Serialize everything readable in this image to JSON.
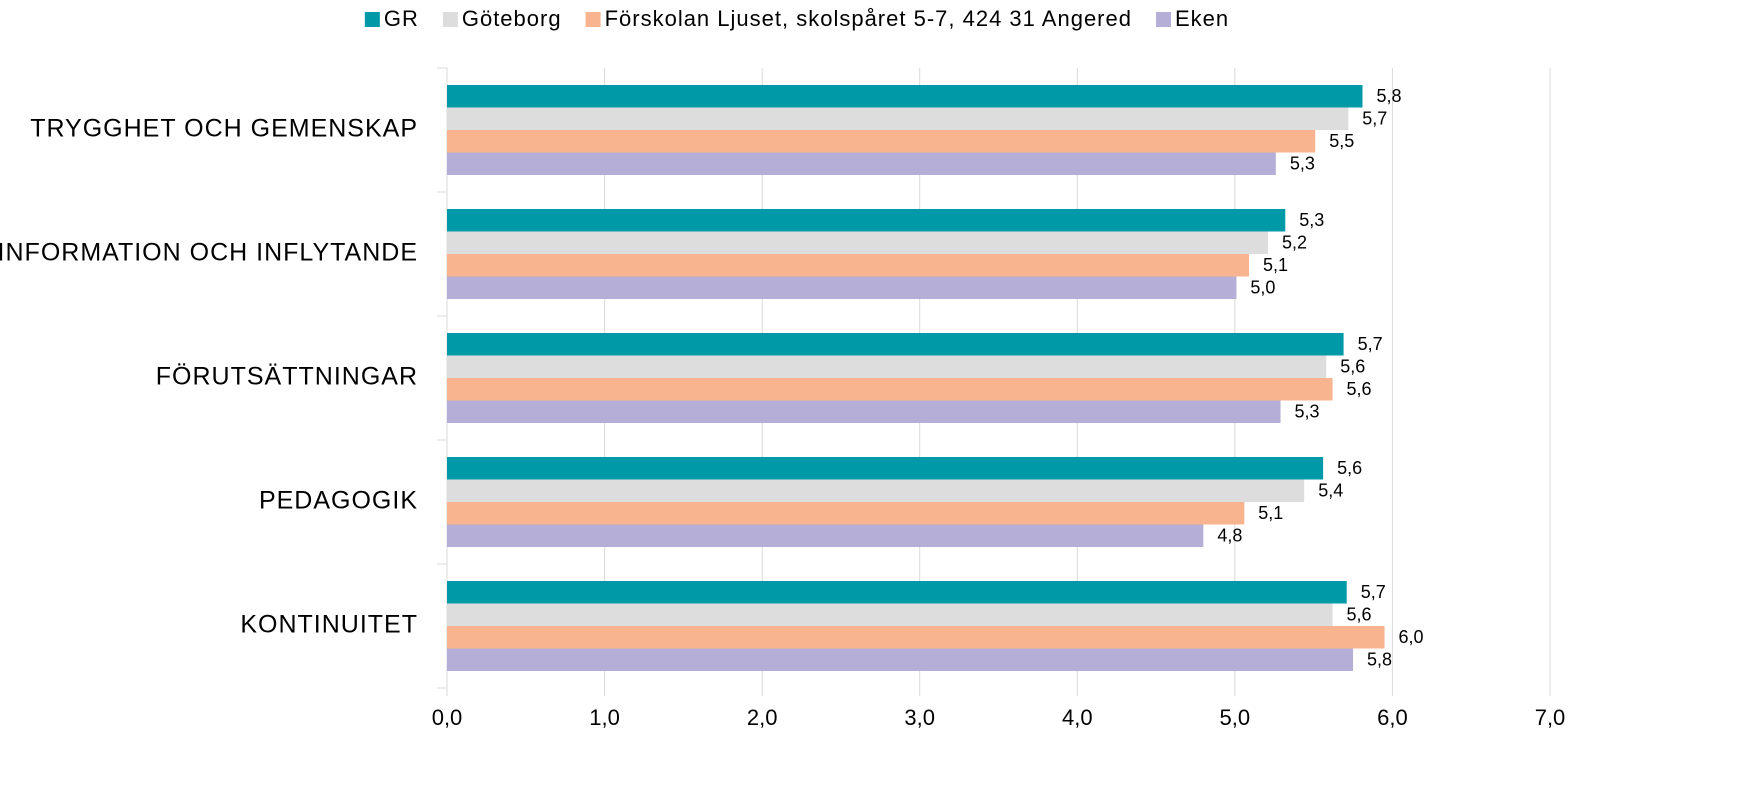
{
  "chart_data": {
    "type": "bar",
    "orientation": "horizontal",
    "categories": [
      "TRYGGHET OCH GEMENSKAP",
      "INFORMATION OCH INFLYTANDE",
      "FÖRUTSÄTTNINGAR",
      "PEDAGOGIK",
      "KONTINUITET"
    ],
    "series": [
      {
        "name": "GR",
        "color": "#0099a8",
        "values": [
          5.81,
          5.32,
          5.69,
          5.56,
          5.71
        ],
        "value_labels": [
          "5,8",
          "5,3",
          "5,7",
          "5,6",
          "5,7"
        ]
      },
      {
        "name": "Göteborg",
        "color": "#dddddd",
        "values": [
          5.72,
          5.21,
          5.58,
          5.44,
          5.62
        ],
        "value_labels": [
          "5,7",
          "5,2",
          "5,6",
          "5,4",
          "5,6"
        ]
      },
      {
        "name": "Förskolan Ljuset, skolspåret 5-7, 424 31 Angered",
        "color": "#f8b48e",
        "values": [
          5.51,
          5.09,
          5.62,
          5.06,
          5.95
        ],
        "value_labels": [
          "5,5",
          "5,1",
          "5,6",
          "5,1",
          "6,0"
        ]
      },
      {
        "name": "Eken",
        "color": "#b5aed6",
        "values": [
          5.26,
          5.01,
          5.29,
          4.8,
          5.75
        ],
        "value_labels": [
          "5,3",
          "5,0",
          "5,3",
          "4,8",
          "5,8"
        ]
      }
    ],
    "xlim": [
      0,
      7
    ],
    "xticks": [
      {
        "value": 0,
        "label": "0,0"
      },
      {
        "value": 1,
        "label": "1,0"
      },
      {
        "value": 2,
        "label": "2,0"
      },
      {
        "value": 3,
        "label": "3,0"
      },
      {
        "value": 4,
        "label": "4,0"
      },
      {
        "value": 5,
        "label": "5,0"
      },
      {
        "value": 6,
        "label": "6,0"
      },
      {
        "value": 7,
        "label": "7,0"
      }
    ],
    "grid": true,
    "legend": "top"
  }
}
